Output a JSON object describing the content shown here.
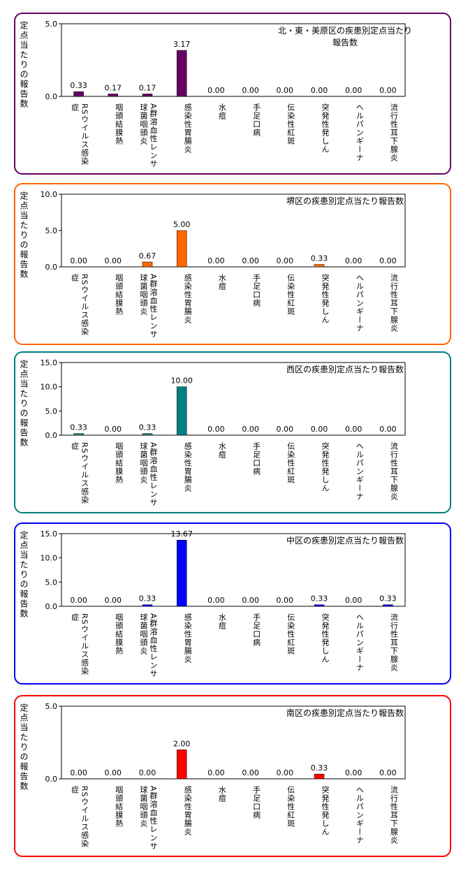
{
  "chart_data": [
    {
      "type": "bar",
      "title": "北・東・美原区の疾患別定点当たり報告数",
      "y_label": "定点当たりの報告数",
      "categories": [
        "RSウイルス感染症",
        "咽頭結膜熱",
        "A群溶血性レンサ球菌咽頭炎",
        "感染性胃腸炎",
        "水痘",
        "手足口病",
        "伝染性紅斑",
        "突発性発しん",
        "ヘルパンギーナ",
        "流行性耳下腺炎"
      ],
      "values": [
        0.33,
        0.17,
        0.17,
        3.17,
        0,
        0,
        0,
        0,
        0,
        0
      ],
      "value_labels": [
        "0.33",
        "0.17",
        "0.17",
        "3.17",
        "0.00",
        "0.00",
        "0.00",
        "0.00",
        "0.00",
        "0.00"
      ],
      "color": "#660066",
      "ylim": [
        0,
        5
      ],
      "yticks": [
        {
          "value": 0,
          "label": "0.0"
        },
        {
          "value": 5,
          "label": "5.0"
        }
      ]
    },
    {
      "type": "bar",
      "title": "堺区の疾患別定点当たり報告数",
      "y_label": "定点当たりの報告数",
      "categories": [
        "RSウイルス感染症",
        "咽頭結膜熱",
        "A群溶血性レンサ球菌咽頭炎",
        "感染性胃腸炎",
        "水痘",
        "手足口病",
        "伝染性紅斑",
        "突発性発しん",
        "ヘルパンギーナ",
        "流行性耳下腺炎"
      ],
      "values": [
        0,
        0,
        0.67,
        5,
        0,
        0,
        0,
        0.33,
        0,
        0
      ],
      "value_labels": [
        "0.00",
        "0.00",
        "0.67",
        "5.00",
        "0.00",
        "0.00",
        "0.00",
        "0.33",
        "0.00",
        "0.00"
      ],
      "color": "#ff6600",
      "ylim": [
        0,
        10
      ],
      "yticks": [
        {
          "value": 0,
          "label": "0.0"
        },
        {
          "value": 5,
          "label": "5.0"
        },
        {
          "value": 10,
          "label": "10.0"
        }
      ]
    },
    {
      "type": "bar",
      "title": "西区の疾患別定点当たり報告数",
      "y_label": "定点当たりの報告数",
      "categories": [
        "RSウイルス感染症",
        "咽頭結膜熱",
        "A群溶血性レンサ球菌咽頭炎",
        "感染性胃腸炎",
        "水痘",
        "手足口病",
        "伝染性紅斑",
        "突発性発しん",
        "ヘルパンギーナ",
        "流行性耳下腺炎"
      ],
      "values": [
        0.33,
        0,
        0.33,
        10,
        0,
        0,
        0,
        0,
        0,
        0
      ],
      "value_labels": [
        "0.33",
        "0.00",
        "0.33",
        "10.00",
        "0.00",
        "0.00",
        "0.00",
        "0.00",
        "0.00",
        "0.00"
      ],
      "color": "#008080",
      "ylim": [
        0,
        15
      ],
      "yticks": [
        {
          "value": 0,
          "label": "0.0"
        },
        {
          "value": 5,
          "label": "5.0"
        },
        {
          "value": 10,
          "label": "10.0"
        },
        {
          "value": 15,
          "label": "15.0"
        }
      ]
    },
    {
      "type": "bar",
      "title": "中区の疾患別定点当たり報告数",
      "y_label": "定点当たりの報告数",
      "categories": [
        "RSウイルス感染症",
        "咽頭結膜熱",
        "A群溶血性レンサ球菌咽頭炎",
        "感染性胃腸炎",
        "水痘",
        "手足口病",
        "伝染性紅斑",
        "突発性発しん",
        "ヘルパンギーナ",
        "流行性耳下腺炎"
      ],
      "values": [
        0,
        0,
        0.33,
        13.67,
        0,
        0,
        0,
        0.33,
        0,
        0.33
      ],
      "value_labels": [
        "0.00",
        "0.00",
        "0.33",
        "13.67",
        "0.00",
        "0.00",
        "0.00",
        "0.33",
        "0.00",
        "0.33"
      ],
      "color": "#0000ff",
      "ylim": [
        0,
        15
      ],
      "yticks": [
        {
          "value": 0,
          "label": "0.0"
        },
        {
          "value": 5,
          "label": "5.0"
        },
        {
          "value": 10,
          "label": "10.0"
        },
        {
          "value": 15,
          "label": "15.0"
        }
      ]
    },
    {
      "type": "bar",
      "title": "南区の疾患別定点当たり報告数",
      "y_label": "定点当たりの報告数",
      "categories": [
        "RSウイルス感染症",
        "咽頭結膜熱",
        "A群溶血性レンサ球菌咽頭炎",
        "感染性胃腸炎",
        "水痘",
        "手足口病",
        "伝染性紅斑",
        "突発性発しん",
        "ヘルパンギーナ",
        "流行性耳下腺炎"
      ],
      "values": [
        0,
        0,
        0,
        2,
        0,
        0,
        0,
        0.33,
        0,
        0
      ],
      "value_labels": [
        "0.00",
        "0.00",
        "0.00",
        "2.00",
        "0.00",
        "0.00",
        "0.00",
        "0.33",
        "0.00",
        "0.00"
      ],
      "color": "#ff0000",
      "ylim": [
        0,
        5
      ],
      "yticks": [
        {
          "value": 0,
          "label": "0.0"
        },
        {
          "value": 5,
          "label": "5.0"
        }
      ]
    }
  ]
}
